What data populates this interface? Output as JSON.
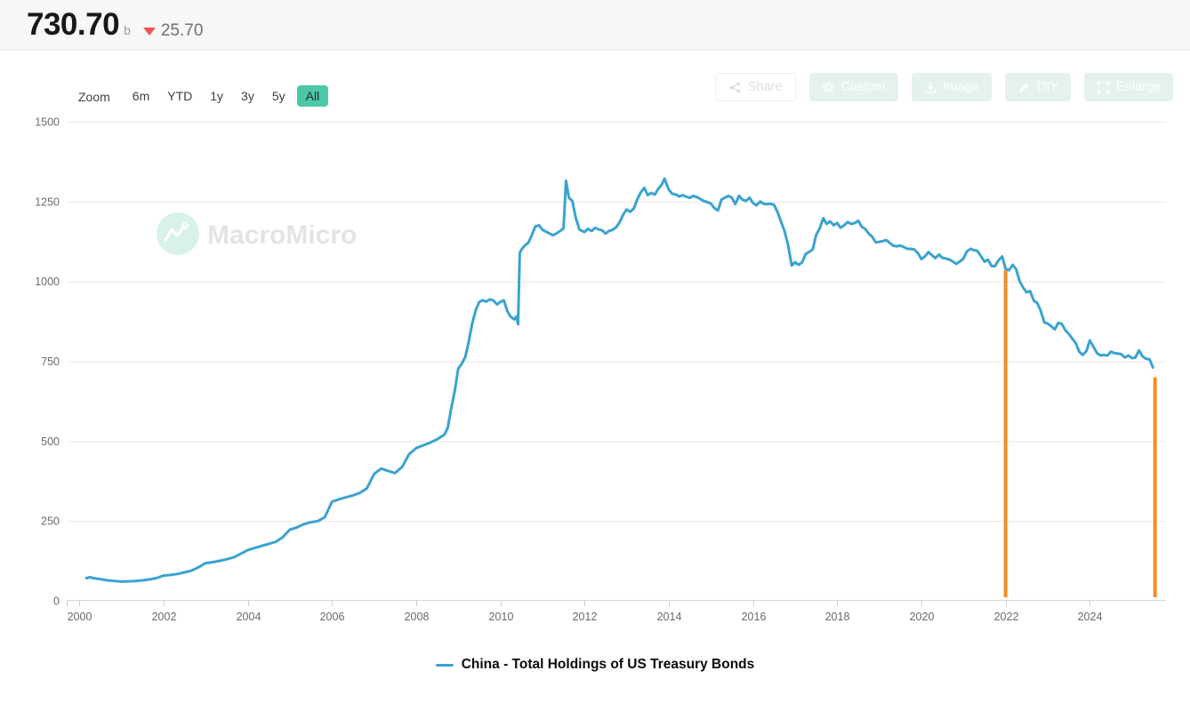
{
  "header": {
    "value": "730.70",
    "unit": "b",
    "change": "25.70",
    "change_direction": "down",
    "change_color": "#f0534f"
  },
  "toolbar": {
    "zoom_label": "Zoom",
    "ranges": [
      "6m",
      "YTD",
      "1y",
      "3y",
      "5y",
      "All"
    ],
    "active_range": "All"
  },
  "actions": [
    {
      "label": "Share",
      "icon": "share-icon"
    },
    {
      "label": "Custom",
      "icon": "gear-icon"
    },
    {
      "label": "Image",
      "icon": "download-icon"
    },
    {
      "label": "DIY",
      "icon": "pencil-icon"
    },
    {
      "label": "Enlarge",
      "icon": "enlarge-icon"
    }
  ],
  "watermark": {
    "text": "MacroMicro",
    "icon": "macromicro-logo-icon"
  },
  "legend": {
    "label": "China - Total Holdings of US Treasury Bonds"
  },
  "colors": {
    "line": "#3aa3cf",
    "annotation": "#f18d25",
    "accent": "#4cc7a7",
    "grid": "#e9e9eb",
    "axis": "#d5d5d8",
    "tick": "#cccccf",
    "axis_label": "#666a6e"
  },
  "chart_data": {
    "type": "line",
    "title": "",
    "xlabel": "",
    "ylabel": "",
    "xlim": [
      1999.7,
      2025.81
    ],
    "ylim": [
      0,
      1500
    ],
    "yticks": [
      0,
      250,
      500,
      750,
      1000,
      1250,
      1500
    ],
    "xticks": [
      2000,
      2002,
      2004,
      2006,
      2008,
      2010,
      2012,
      2014,
      2016,
      2018,
      2020,
      2022,
      2024
    ],
    "grid": true,
    "legend_position": "bottom-center",
    "latest_value": 730.7,
    "latest_change": -25.7,
    "series": [
      {
        "name": "China - Total Holdings of US Treasury Bonds",
        "color": "#3aa3cf",
        "points": [
          [
            2000.17,
            71
          ],
          [
            2000.25,
            74
          ],
          [
            2000.33,
            71
          ],
          [
            2000.5,
            68
          ],
          [
            2000.67,
            64
          ],
          [
            2000.83,
            62
          ],
          [
            2001.0,
            60
          ],
          [
            2001.17,
            61
          ],
          [
            2001.33,
            62
          ],
          [
            2001.5,
            64
          ],
          [
            2001.67,
            67
          ],
          [
            2001.83,
            71
          ],
          [
            2002.0,
            79
          ],
          [
            2002.17,
            81
          ],
          [
            2002.33,
            84
          ],
          [
            2002.5,
            89
          ],
          [
            2002.67,
            95
          ],
          [
            2002.83,
            105
          ],
          [
            2003.0,
            118
          ],
          [
            2003.17,
            121
          ],
          [
            2003.33,
            125
          ],
          [
            2003.5,
            130
          ],
          [
            2003.67,
            136
          ],
          [
            2003.83,
            147
          ],
          [
            2004.0,
            159
          ],
          [
            2004.17,
            166
          ],
          [
            2004.33,
            172
          ],
          [
            2004.5,
            178
          ],
          [
            2004.67,
            185
          ],
          [
            2004.83,
            199
          ],
          [
            2005.0,
            223
          ],
          [
            2005.17,
            230
          ],
          [
            2005.33,
            240
          ],
          [
            2005.5,
            246
          ],
          [
            2005.67,
            250
          ],
          [
            2005.83,
            262
          ],
          [
            2006.0,
            310
          ],
          [
            2006.17,
            318
          ],
          [
            2006.33,
            324
          ],
          [
            2006.5,
            330
          ],
          [
            2006.67,
            338
          ],
          [
            2006.83,
            352
          ],
          [
            2007.0,
            397
          ],
          [
            2007.17,
            414
          ],
          [
            2007.33,
            407
          ],
          [
            2007.5,
            400
          ],
          [
            2007.67,
            420
          ],
          [
            2007.83,
            459
          ],
          [
            2008.0,
            478
          ],
          [
            2008.17,
            487
          ],
          [
            2008.33,
            495
          ],
          [
            2008.5,
            506
          ],
          [
            2008.67,
            520
          ],
          [
            2008.75,
            541
          ],
          [
            2008.83,
            600
          ],
          [
            2008.92,
            660
          ],
          [
            2009.0,
            727
          ],
          [
            2009.08,
            741
          ],
          [
            2009.17,
            765
          ],
          [
            2009.25,
            812
          ],
          [
            2009.33,
            868
          ],
          [
            2009.42,
            912
          ],
          [
            2009.5,
            936
          ],
          [
            2009.58,
            941
          ],
          [
            2009.67,
            937
          ],
          [
            2009.75,
            944
          ],
          [
            2009.83,
            941
          ],
          [
            2009.92,
            928
          ],
          [
            2010.0,
            936
          ],
          [
            2010.08,
            941
          ],
          [
            2010.17,
            906
          ],
          [
            2010.25,
            889
          ],
          [
            2010.33,
            881
          ],
          [
            2010.38,
            890
          ],
          [
            2010.42,
            866
          ],
          [
            2010.46,
            1088
          ],
          [
            2010.5,
            1100
          ],
          [
            2010.58,
            1112
          ],
          [
            2010.67,
            1122
          ],
          [
            2010.75,
            1146
          ],
          [
            2010.83,
            1172
          ],
          [
            2010.92,
            1176
          ],
          [
            2011.0,
            1162
          ],
          [
            2011.08,
            1156
          ],
          [
            2011.17,
            1150
          ],
          [
            2011.25,
            1145
          ],
          [
            2011.33,
            1150
          ],
          [
            2011.42,
            1158
          ],
          [
            2011.5,
            1166
          ],
          [
            2011.56,
            1315
          ],
          [
            2011.63,
            1262
          ],
          [
            2011.71,
            1252
          ],
          [
            2011.79,
            1200
          ],
          [
            2011.88,
            1162
          ],
          [
            2012.0,
            1155
          ],
          [
            2012.08,
            1165
          ],
          [
            2012.17,
            1158
          ],
          [
            2012.25,
            1168
          ],
          [
            2012.33,
            1163
          ],
          [
            2012.42,
            1160
          ],
          [
            2012.5,
            1150
          ],
          [
            2012.58,
            1158
          ],
          [
            2012.67,
            1162
          ],
          [
            2012.75,
            1170
          ],
          [
            2012.83,
            1185
          ],
          [
            2012.92,
            1210
          ],
          [
            2013.0,
            1225
          ],
          [
            2013.08,
            1218
          ],
          [
            2013.17,
            1228
          ],
          [
            2013.25,
            1256
          ],
          [
            2013.33,
            1278
          ],
          [
            2013.42,
            1293
          ],
          [
            2013.5,
            1270
          ],
          [
            2013.58,
            1277
          ],
          [
            2013.67,
            1272
          ],
          [
            2013.75,
            1290
          ],
          [
            2013.83,
            1302
          ],
          [
            2013.9,
            1322
          ],
          [
            2014.0,
            1288
          ],
          [
            2014.08,
            1275
          ],
          [
            2014.17,
            1272
          ],
          [
            2014.25,
            1266
          ],
          [
            2014.33,
            1270
          ],
          [
            2014.42,
            1265
          ],
          [
            2014.5,
            1262
          ],
          [
            2014.58,
            1268
          ],
          [
            2014.67,
            1264
          ],
          [
            2014.75,
            1258
          ],
          [
            2014.83,
            1252
          ],
          [
            2014.92,
            1248
          ],
          [
            2015.0,
            1244
          ],
          [
            2015.08,
            1230
          ],
          [
            2015.17,
            1222
          ],
          [
            2015.25,
            1256
          ],
          [
            2015.33,
            1262
          ],
          [
            2015.42,
            1268
          ],
          [
            2015.5,
            1262
          ],
          [
            2015.58,
            1242
          ],
          [
            2015.67,
            1268
          ],
          [
            2015.75,
            1256
          ],
          [
            2015.83,
            1252
          ],
          [
            2015.92,
            1262
          ],
          [
            2016.0,
            1246
          ],
          [
            2016.08,
            1238
          ],
          [
            2016.17,
            1250
          ],
          [
            2016.25,
            1243
          ],
          [
            2016.33,
            1242
          ],
          [
            2016.42,
            1243
          ],
          [
            2016.5,
            1240
          ],
          [
            2016.58,
            1218
          ],
          [
            2016.67,
            1186
          ],
          [
            2016.75,
            1158
          ],
          [
            2016.83,
            1116
          ],
          [
            2016.92,
            1050
          ],
          [
            2017.0,
            1060
          ],
          [
            2017.08,
            1052
          ],
          [
            2017.17,
            1060
          ],
          [
            2017.25,
            1086
          ],
          [
            2017.33,
            1092
          ],
          [
            2017.42,
            1100
          ],
          [
            2017.5,
            1145
          ],
          [
            2017.58,
            1165
          ],
          [
            2017.67,
            1198
          ],
          [
            2017.75,
            1180
          ],
          [
            2017.83,
            1188
          ],
          [
            2017.92,
            1176
          ],
          [
            2018.0,
            1183
          ],
          [
            2018.08,
            1168
          ],
          [
            2018.17,
            1176
          ],
          [
            2018.25,
            1186
          ],
          [
            2018.33,
            1180
          ],
          [
            2018.42,
            1183
          ],
          [
            2018.5,
            1190
          ],
          [
            2018.58,
            1172
          ],
          [
            2018.67,
            1164
          ],
          [
            2018.75,
            1150
          ],
          [
            2018.83,
            1140
          ],
          [
            2018.92,
            1122
          ],
          [
            2019.0,
            1124
          ],
          [
            2019.08,
            1126
          ],
          [
            2019.17,
            1130
          ],
          [
            2019.25,
            1120
          ],
          [
            2019.33,
            1112
          ],
          [
            2019.42,
            1110
          ],
          [
            2019.5,
            1112
          ],
          [
            2019.58,
            1108
          ],
          [
            2019.67,
            1102
          ],
          [
            2019.75,
            1102
          ],
          [
            2019.83,
            1100
          ],
          [
            2019.92,
            1088
          ],
          [
            2020.0,
            1070
          ],
          [
            2020.08,
            1078
          ],
          [
            2020.17,
            1092
          ],
          [
            2020.25,
            1082
          ],
          [
            2020.33,
            1073
          ],
          [
            2020.42,
            1084
          ],
          [
            2020.5,
            1074
          ],
          [
            2020.58,
            1072
          ],
          [
            2020.67,
            1068
          ],
          [
            2020.75,
            1062
          ],
          [
            2020.83,
            1055
          ],
          [
            2020.92,
            1063
          ],
          [
            2021.0,
            1072
          ],
          [
            2021.08,
            1094
          ],
          [
            2021.17,
            1102
          ],
          [
            2021.25,
            1098
          ],
          [
            2021.33,
            1096
          ],
          [
            2021.42,
            1078
          ],
          [
            2021.5,
            1062
          ],
          [
            2021.58,
            1068
          ],
          [
            2021.67,
            1048
          ],
          [
            2021.75,
            1048
          ],
          [
            2021.83,
            1066
          ],
          [
            2021.92,
            1078
          ],
          [
            2022.0,
            1040
          ],
          [
            2022.08,
            1035
          ],
          [
            2022.17,
            1052
          ],
          [
            2022.25,
            1038
          ],
          [
            2022.33,
            1002
          ],
          [
            2022.42,
            980
          ],
          [
            2022.5,
            966
          ],
          [
            2022.58,
            970
          ],
          [
            2022.67,
            940
          ],
          [
            2022.75,
            933
          ],
          [
            2022.83,
            910
          ],
          [
            2022.92,
            872
          ],
          [
            2023.0,
            868
          ],
          [
            2023.08,
            860
          ],
          [
            2023.17,
            850
          ],
          [
            2023.25,
            870
          ],
          [
            2023.33,
            868
          ],
          [
            2023.42,
            847
          ],
          [
            2023.5,
            836
          ],
          [
            2023.58,
            822
          ],
          [
            2023.67,
            806
          ],
          [
            2023.75,
            780
          ],
          [
            2023.83,
            770
          ],
          [
            2023.92,
            782
          ],
          [
            2024.0,
            815
          ],
          [
            2024.08,
            797
          ],
          [
            2024.17,
            776
          ],
          [
            2024.25,
            768
          ],
          [
            2024.33,
            770
          ],
          [
            2024.42,
            768
          ],
          [
            2024.5,
            780
          ],
          [
            2024.58,
            776
          ],
          [
            2024.67,
            774
          ],
          [
            2024.75,
            772
          ],
          [
            2024.83,
            762
          ],
          [
            2024.92,
            768
          ],
          [
            2025.0,
            760
          ],
          [
            2025.08,
            761
          ],
          [
            2025.17,
            784
          ],
          [
            2025.25,
            766
          ],
          [
            2025.33,
            758
          ],
          [
            2025.42,
            756
          ],
          [
            2025.5,
            730.7
          ]
        ]
      }
    ],
    "annotations": [
      {
        "type": "vline",
        "x": 2022.0,
        "y_from": 0,
        "y_to": 1035,
        "color": "#f18d25"
      },
      {
        "type": "vline",
        "x": 2025.55,
        "y_from": 0,
        "y_to": 700,
        "color": "#f18d25"
      }
    ]
  }
}
